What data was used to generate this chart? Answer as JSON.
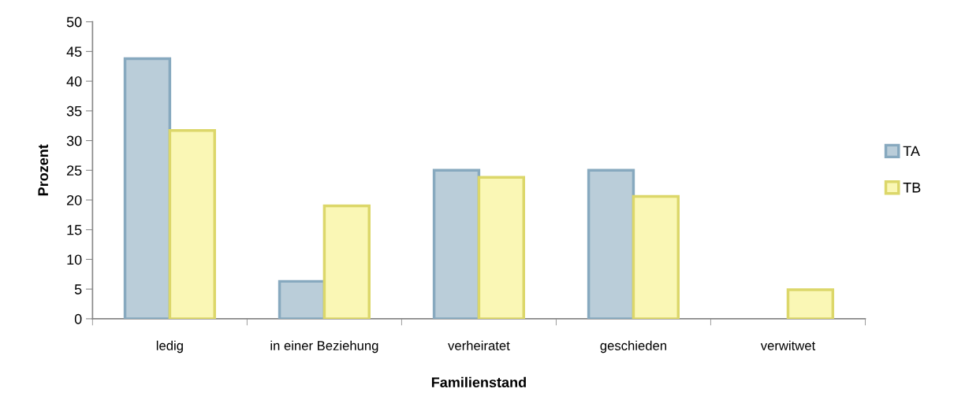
{
  "chart_data": {
    "type": "bar",
    "xlabel": "Familienstand",
    "ylabel": "Prozent",
    "categories": [
      "ledig",
      "in einer Beziehung",
      "verheiratet",
      "geschieden",
      "verwitwet"
    ],
    "series": [
      {
        "name": "TA",
        "color": "#bacdd9",
        "values": [
          43.8,
          6.3,
          25.0,
          25.0,
          null
        ]
      },
      {
        "name": "TB",
        "color": "#faf7b5",
        "values": [
          31.7,
          19.0,
          23.8,
          20.6,
          4.9
        ]
      }
    ],
    "ylim": [
      0,
      50
    ],
    "yticks": [
      0,
      5,
      10,
      15,
      20,
      25,
      30,
      35,
      40,
      45,
      50
    ],
    "grid": false,
    "legend": "right"
  }
}
